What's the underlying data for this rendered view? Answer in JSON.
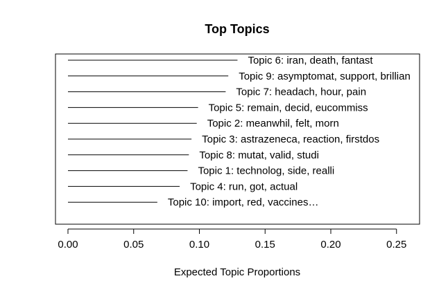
{
  "chart_data": {
    "type": "bar",
    "orientation": "horizontal",
    "title": "Top Topics",
    "xlabel": "Expected Topic Proportions",
    "ylabel": "",
    "xlim": [
      0,
      0.265
    ],
    "xticks": [
      0.0,
      0.05,
      0.1,
      0.15,
      0.2,
      0.25
    ],
    "xtick_labels": [
      "0.00",
      "0.05",
      "0.10",
      "0.15",
      "0.20",
      "0.25"
    ],
    "grid": false,
    "legend": "none",
    "categories": [
      "Topic 6: iran, death, fantast",
      "Topic 9: asymptomat, support, brillian",
      "Topic 7: headach, hour, pain",
      "Topic 5: remain, decid, eucommiss",
      "Topic 2: meanwhil, felt, morn",
      "Topic 3: astrazeneca, reaction, firstdos",
      "Topic 8: mutat, valid, studi",
      "Topic 1: technolog, side, realli",
      "Topic 4: run, got, actual",
      "Topic 10: import, red, vaccines…"
    ],
    "values": [
      0.129,
      0.122,
      0.12,
      0.099,
      0.098,
      0.094,
      0.092,
      0.091,
      0.085,
      0.068
    ]
  }
}
